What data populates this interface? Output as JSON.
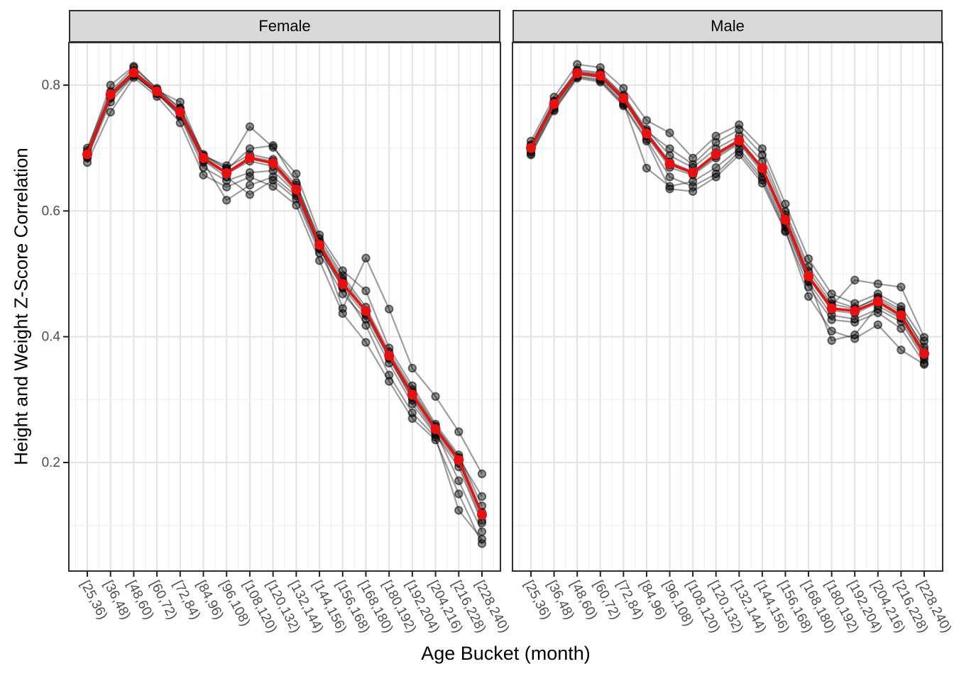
{
  "chart_data": {
    "type": "line",
    "faceted": true,
    "title": "",
    "xlabel": "Age Bucket (month)",
    "ylabel": "Height and Weight Z-Score Correlation",
    "categories": [
      "[25,36)",
      "[36,48)",
      "[48,60)",
      "[60,72)",
      "[72,84)",
      "[84,96)",
      "[96,108)",
      "[108,120)",
      "[120,132)",
      "[132,144)",
      "[144,156)",
      "[156,168)",
      "[168,180)",
      "[180,192)",
      "[192,204)",
      "[204,216)",
      "[216,228)",
      "[228,240)"
    ],
    "yticks": [
      0.2,
      0.4,
      0.6,
      0.8
    ],
    "ytick_labels": [
      "0.2",
      "0.4",
      "0.6",
      "0.8"
    ],
    "ylim": [
      0.03,
      0.87
    ],
    "grid": {
      "horizontal_major": [
        0.2,
        0.4,
        0.6,
        0.8
      ],
      "horizontal_minor": [
        0.1,
        0.3,
        0.5,
        0.7
      ],
      "vertical": "major at each bucket, minor at midpoints"
    },
    "legend_position": "none",
    "colors": {
      "mean": "#EB1010",
      "replicate": "#000000",
      "replicate_line_alpha": 0.38,
      "replicate_point_alpha": 0.42,
      "strip_bg": "#D9D9D9",
      "panel_border": "#2F2F2F",
      "grid_major": "#E3E3E3",
      "grid_minor": "#F0F0F0",
      "axis_text": "#4D4D4D",
      "tick_mark": "#222222"
    },
    "facets": [
      {
        "label": "Female",
        "mean_series": {
          "name": "mean",
          "values": [
            0.69,
            0.785,
            0.82,
            0.79,
            0.757,
            0.684,
            0.66,
            0.684,
            0.676,
            0.634,
            0.546,
            0.484,
            0.441,
            0.37,
            0.308,
            0.253,
            0.204,
            0.117
          ]
        },
        "series": [
          {
            "name": "replicate-1",
            "values": [
              0.7,
              0.79,
              0.828,
              0.795,
              0.762,
              0.69,
              0.668,
              0.69,
              0.682,
              0.641,
              0.556,
              0.497,
              0.447,
              0.376,
              0.316,
              0.258,
              0.207,
              0.146
            ]
          },
          {
            "name": "replicate-2",
            "values": [
              0.696,
              0.8,
              0.83,
              0.793,
              0.764,
              0.687,
              0.672,
              0.734,
              0.701,
              0.659,
              0.562,
              0.505,
              0.473,
              0.382,
              0.322,
              0.261,
              0.212,
              0.131
            ]
          },
          {
            "name": "replicate-3",
            "values": [
              0.684,
              0.773,
              0.815,
              0.788,
              0.752,
              0.677,
              0.617,
              0.641,
              0.654,
              0.624,
              0.539,
              0.479,
              0.434,
              0.367,
              0.299,
              0.247,
              0.199,
              0.108
            ]
          },
          {
            "name": "replicate-4",
            "values": [
              0.687,
              0.779,
              0.817,
              0.786,
              0.754,
              0.68,
              0.654,
              0.626,
              0.649,
              0.619,
              0.533,
              0.468,
              0.428,
              0.358,
              0.293,
              0.244,
              0.193,
              0.104
            ]
          },
          {
            "name": "replicate-5",
            "values": [
              0.691,
              0.786,
              0.822,
              0.791,
              0.758,
              0.686,
              0.662,
              0.686,
              0.679,
              0.637,
              0.549,
              0.445,
              0.525,
              0.444,
              0.35,
              0.305,
              0.249,
              0.182
            ]
          },
          {
            "name": "replicate-6",
            "values": [
              0.686,
              0.781,
              0.816,
              0.787,
              0.75,
              0.669,
              0.648,
              0.661,
              0.664,
              0.628,
              0.541,
              0.477,
              0.418,
              0.339,
              0.279,
              0.24,
              0.124,
              0.078
            ]
          },
          {
            "name": "replicate-7",
            "values": [
              0.689,
              0.783,
              0.819,
              0.789,
              0.755,
              0.681,
              0.659,
              0.679,
              0.671,
              0.631,
              0.543,
              0.488,
              0.437,
              0.365,
              0.303,
              0.25,
              0.171,
              0.09
            ]
          },
          {
            "name": "replicate-8",
            "values": [
              0.693,
              0.787,
              0.823,
              0.792,
              0.773,
              0.688,
              0.666,
              0.699,
              0.704,
              0.645,
              0.551,
              0.492,
              0.442,
              0.372,
              0.312,
              0.256,
              0.208,
              0.121
            ]
          },
          {
            "name": "replicate-9",
            "values": [
              0.677,
              0.757,
              0.812,
              0.782,
              0.74,
              0.657,
              0.638,
              0.654,
              0.639,
              0.609,
              0.521,
              0.437,
              0.391,
              0.329,
              0.27,
              0.236,
              0.15,
              0.071
            ]
          }
        ]
      },
      {
        "label": "Male",
        "mean_series": {
          "name": "mean",
          "values": [
            0.7,
            0.77,
            0.819,
            0.815,
            0.779,
            0.723,
            0.675,
            0.661,
            0.69,
            0.712,
            0.668,
            0.586,
            0.496,
            0.445,
            0.441,
            0.456,
            0.434,
            0.373
          ]
        },
        "series": [
          {
            "name": "replicate-1",
            "values": [
              0.705,
              0.775,
              0.824,
              0.82,
              0.784,
              0.73,
              0.688,
              0.669,
              0.699,
              0.719,
              0.679,
              0.594,
              0.504,
              0.452,
              0.444,
              0.463,
              0.443,
              0.379
            ]
          },
          {
            "name": "replicate-2",
            "values": [
              0.711,
              0.781,
              0.833,
              0.828,
              0.795,
              0.744,
              0.724,
              0.684,
              0.719,
              0.737,
              0.699,
              0.611,
              0.524,
              0.468,
              0.453,
              0.468,
              0.448,
              0.393
            ]
          },
          {
            "name": "replicate-3",
            "values": [
              0.694,
              0.764,
              0.814,
              0.809,
              0.771,
              0.668,
              0.639,
              0.647,
              0.669,
              0.699,
              0.654,
              0.574,
              0.487,
              0.434,
              0.428,
              0.444,
              0.424,
              0.364
            ]
          },
          {
            "name": "replicate-4",
            "values": [
              0.689,
              0.759,
              0.811,
              0.805,
              0.767,
              0.711,
              0.635,
              0.631,
              0.654,
              0.689,
              0.644,
              0.567,
              0.479,
              0.427,
              0.423,
              0.438,
              0.413,
              0.358
            ]
          },
          {
            "name": "replicate-5",
            "values": [
              0.697,
              0.767,
              0.817,
              0.813,
              0.775,
              0.719,
              0.669,
              0.657,
              0.684,
              0.707,
              0.661,
              0.579,
              0.489,
              0.394,
              0.403,
              0.449,
              0.429,
              0.368
            ]
          },
          {
            "name": "replicate-6",
            "values": [
              0.702,
              0.772,
              0.82,
              0.816,
              0.78,
              0.726,
              0.678,
              0.662,
              0.692,
              0.714,
              0.669,
              0.589,
              0.497,
              0.449,
              0.49,
              0.484,
              0.479,
              0.399
            ]
          },
          {
            "name": "replicate-7",
            "values": [
              0.699,
              0.769,
              0.818,
              0.812,
              0.777,
              0.721,
              0.673,
              0.659,
              0.687,
              0.709,
              0.665,
              0.583,
              0.493,
              0.442,
              0.437,
              0.454,
              0.431,
              0.371
            ]
          },
          {
            "name": "replicate-8",
            "values": [
              0.704,
              0.774,
              0.822,
              0.818,
              0.782,
              0.727,
              0.699,
              0.674,
              0.709,
              0.729,
              0.689,
              0.599,
              0.511,
              0.458,
              0.446,
              0.46,
              0.439,
              0.384
            ]
          },
          {
            "name": "replicate-9",
            "values": [
              0.691,
              0.761,
              0.813,
              0.807,
              0.769,
              0.714,
              0.654,
              0.639,
              0.659,
              0.694,
              0.649,
              0.569,
              0.464,
              0.409,
              0.397,
              0.419,
              0.379,
              0.356
            ]
          }
        ]
      }
    ]
  }
}
